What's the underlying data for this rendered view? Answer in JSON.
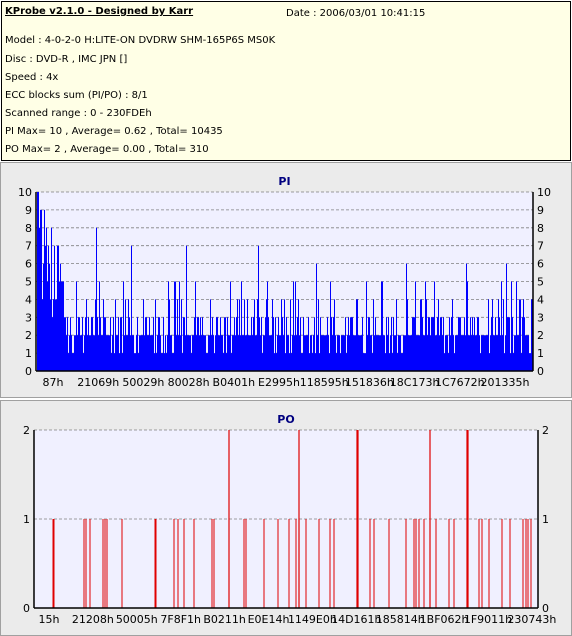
{
  "header": {
    "app_title": "KProbe v2.1.0 - Designed by Karr",
    "date": "Date : 2006/03/01 10:41:15",
    "lines": [
      "Model : 4-0-2-0 H:LITE-ON DVDRW SHM-165P6S MS0K",
      "Disc : DVD-R , IMC JPN []",
      "Speed : 4x",
      "ECC blocks sum (PI/PO) : 8/1",
      "Scanned range : 0 - 230FDEh",
      "PI Max= 10 , Average= 0.62 , Total= 10435",
      "PO Max= 2 , Average= 0.00 , Total= 310"
    ]
  },
  "colors": {
    "info_bg": "#ffffe6",
    "panel_bg": "#ebebeb",
    "plot_bg": "#f0f0ff",
    "pi_bar": "#0000ff",
    "po_bar": "#e00000",
    "grid": "#808080",
    "title": "#000080"
  },
  "chart_data": [
    {
      "type": "bar",
      "title": "PI",
      "ylim": [
        0,
        10
      ],
      "yticks": [
        0,
        1,
        2,
        3,
        4,
        5,
        6,
        7,
        8,
        9,
        10
      ],
      "xtick_labels": [
        "87h",
        "21069h",
        "50029h",
        "80028h",
        "B0401h",
        "E2995h",
        "118595h",
        "151836h",
        "18C173h",
        "1C7672h",
        "201335h"
      ],
      "grid": true,
      "max": 10,
      "average": 0.62,
      "total": 10435
    },
    {
      "type": "bar",
      "title": "PO",
      "ylim": [
        0,
        2
      ],
      "yticks": [
        0,
        1,
        2
      ],
      "xtick_labels": [
        "15h",
        "21208h",
        "50005h",
        "7F8F1h",
        "B0211h",
        "E0E14h",
        "1149E0h",
        "14D161h",
        "185814h",
        "1BF062h",
        "1F9011h",
        "230743h"
      ],
      "grid": true,
      "max": 2,
      "average": 0.0,
      "total": 310
    }
  ]
}
